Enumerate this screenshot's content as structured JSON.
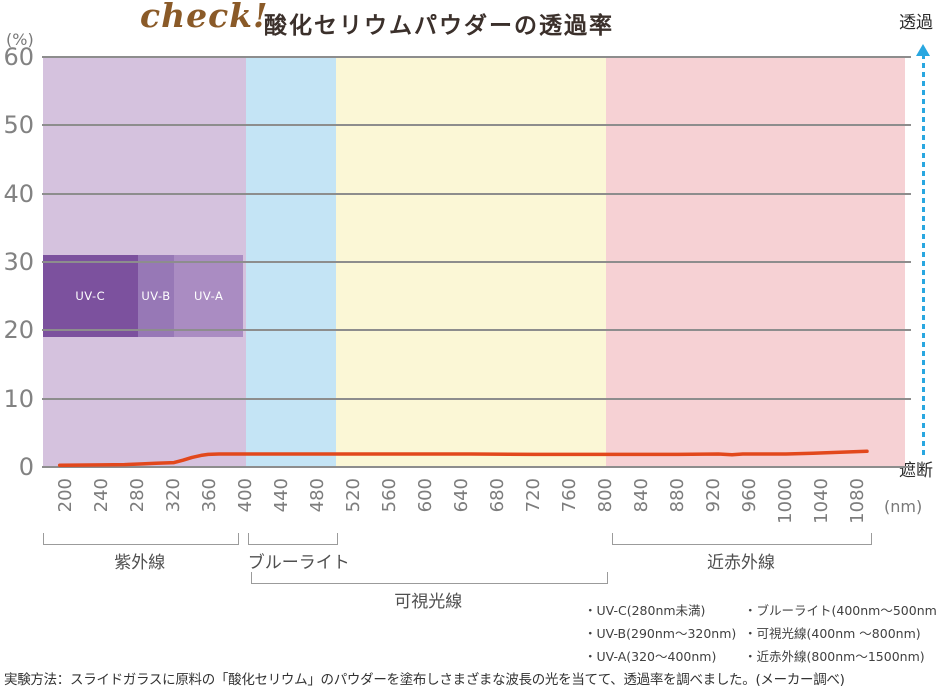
{
  "title": {
    "script": "check!",
    "main": "酸化セリウムパウダーの透過率"
  },
  "y_axis": {
    "unit_label": "(%)",
    "ticks": [
      60,
      50,
      40,
      30,
      20,
      10,
      0
    ]
  },
  "x_axis": {
    "unit_label": "(nm)",
    "ticks": [
      200,
      240,
      280,
      320,
      360,
      400,
      440,
      480,
      520,
      560,
      600,
      640,
      680,
      720,
      760,
      800,
      840,
      880,
      920,
      960,
      1000,
      1040,
      1080
    ]
  },
  "right_scale": {
    "top_label": "透過",
    "bottom_label": "遮断",
    "arrow_color": "#29a7e0"
  },
  "chart_data": {
    "type": "line",
    "title": "酸化セリウムパウダーの透過率",
    "xlabel": "(nm)",
    "ylabel": "(%)",
    "xlim": [
      200,
      1080
    ],
    "ylim": [
      0,
      60
    ],
    "grid": "horizontal-only",
    "series": [
      {
        "name": "酸化セリウムパウダーの透過率",
        "color": "#e2481c",
        "points": [
          [
            193,
            0.25
          ],
          [
            240,
            0.3
          ],
          [
            265,
            0.35
          ],
          [
            285,
            0.45
          ],
          [
            300,
            0.55
          ],
          [
            312,
            0.6
          ],
          [
            320,
            0.65
          ],
          [
            330,
            1.0
          ],
          [
            340,
            1.4
          ],
          [
            350,
            1.7
          ],
          [
            358,
            1.85
          ],
          [
            370,
            1.9
          ],
          [
            450,
            1.9
          ],
          [
            550,
            1.9
          ],
          [
            650,
            1.9
          ],
          [
            720,
            1.85
          ],
          [
            800,
            1.85
          ],
          [
            880,
            1.85
          ],
          [
            925,
            1.9
          ],
          [
            940,
            1.8
          ],
          [
            952,
            1.9
          ],
          [
            1000,
            1.9
          ],
          [
            1030,
            2.0
          ],
          [
            1060,
            2.15
          ],
          [
            1090,
            2.3
          ]
        ]
      }
    ],
    "regions": [
      {
        "label": "紫外線",
        "from_nm": 174,
        "to_nm": 400,
        "color": "#d5c2de"
      },
      {
        "label": "ブルーライト",
        "from_nm": 400,
        "to_nm": 500,
        "color": "#c4e4f5"
      },
      {
        "label": "可視光線",
        "from_nm": 500,
        "to_nm": 800,
        "color": "#fbf7d6"
      },
      {
        "label": "近赤外線",
        "from_nm": 800,
        "to_nm": 1133,
        "color": "#f6d1d4"
      }
    ],
    "uv_bands": {
      "y_range_pct": [
        19,
        31
      ],
      "bands": [
        {
          "label": "UV-C",
          "from_nm": 174,
          "to_nm": 280,
          "color": "#7c519e"
        },
        {
          "label": "UV-B",
          "from_nm": 280,
          "to_nm": 320,
          "color": "#9778b6"
        },
        {
          "label": "UV-A",
          "from_nm": 320,
          "to_nm": 397,
          "color": "#aa8cc2"
        }
      ]
    }
  },
  "brackets": [
    {
      "label": "紫外線",
      "from_nm": 174,
      "to_nm": 390,
      "row": 1
    },
    {
      "label": "ブルーライト",
      "from_nm": 402,
      "to_nm": 500,
      "row": 1
    },
    {
      "label": "可視光線",
      "from_nm": 405,
      "to_nm": 800,
      "row": 2
    },
    {
      "label": "近赤外線",
      "from_nm": 807,
      "to_nm": 1093,
      "row": 1
    }
  ],
  "legend": {
    "col1": [
      "・UV-C(280nm未満)",
      "・UV-B(290nm〜320nm)",
      "・UV-A(320〜400nm)"
    ],
    "col2": [
      "・ブルーライト(400nm〜500nm)",
      "・可視光線(400nm 〜800nm)",
      "・近赤外線(800nm〜1500nm)"
    ]
  },
  "caption": "実験方法：スライドガラスに原料の「酸化セリウム」のパウダーを塗布しさまざまな波長の光を当てて、透過率を調べました。(メーカー調べ)"
}
